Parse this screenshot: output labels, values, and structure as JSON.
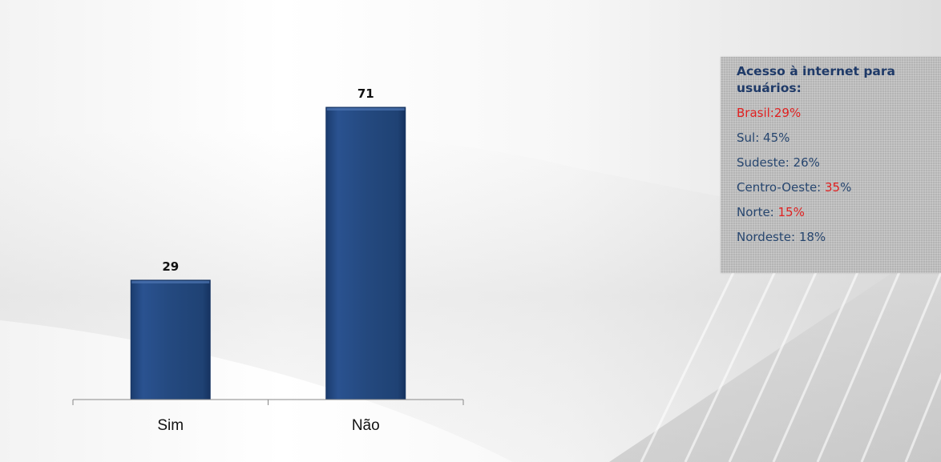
{
  "chart_data": {
    "type": "bar",
    "categories": [
      "Sim",
      "Não"
    ],
    "values": [
      29,
      71
    ],
    "data_labels": [
      "29",
      "71"
    ],
    "title": "",
    "xlabel": "",
    "ylabel": "",
    "ylim": [
      0,
      80
    ],
    "grid": false,
    "legend": "none",
    "bar_color": "#23487f"
  },
  "info_box": {
    "title": "Acesso à internet para usuários:",
    "lines": [
      {
        "label": "Brasil:",
        "value": "29%",
        "label_color": "#e02020",
        "value_color": "#e02020"
      },
      {
        "label": "Sul: ",
        "value": "45%",
        "label_color": "#27466f",
        "value_color": "#27466f"
      },
      {
        "label": "Sudeste: ",
        "value": "26%",
        "label_color": "#27466f",
        "value_color": "#27466f"
      },
      {
        "label": "Centro-Oeste: ",
        "value": "35",
        "suffix": "%",
        "label_color": "#27466f",
        "value_color": "#e02020",
        "suffix_color": "#27466f"
      },
      {
        "label": "Norte: ",
        "value": "15%",
        "label_color": "#27466f",
        "value_color": "#e02020"
      },
      {
        "label": "Nordeste: ",
        "value": "18%",
        "label_color": "#27466f",
        "value_color": "#27466f"
      }
    ]
  }
}
